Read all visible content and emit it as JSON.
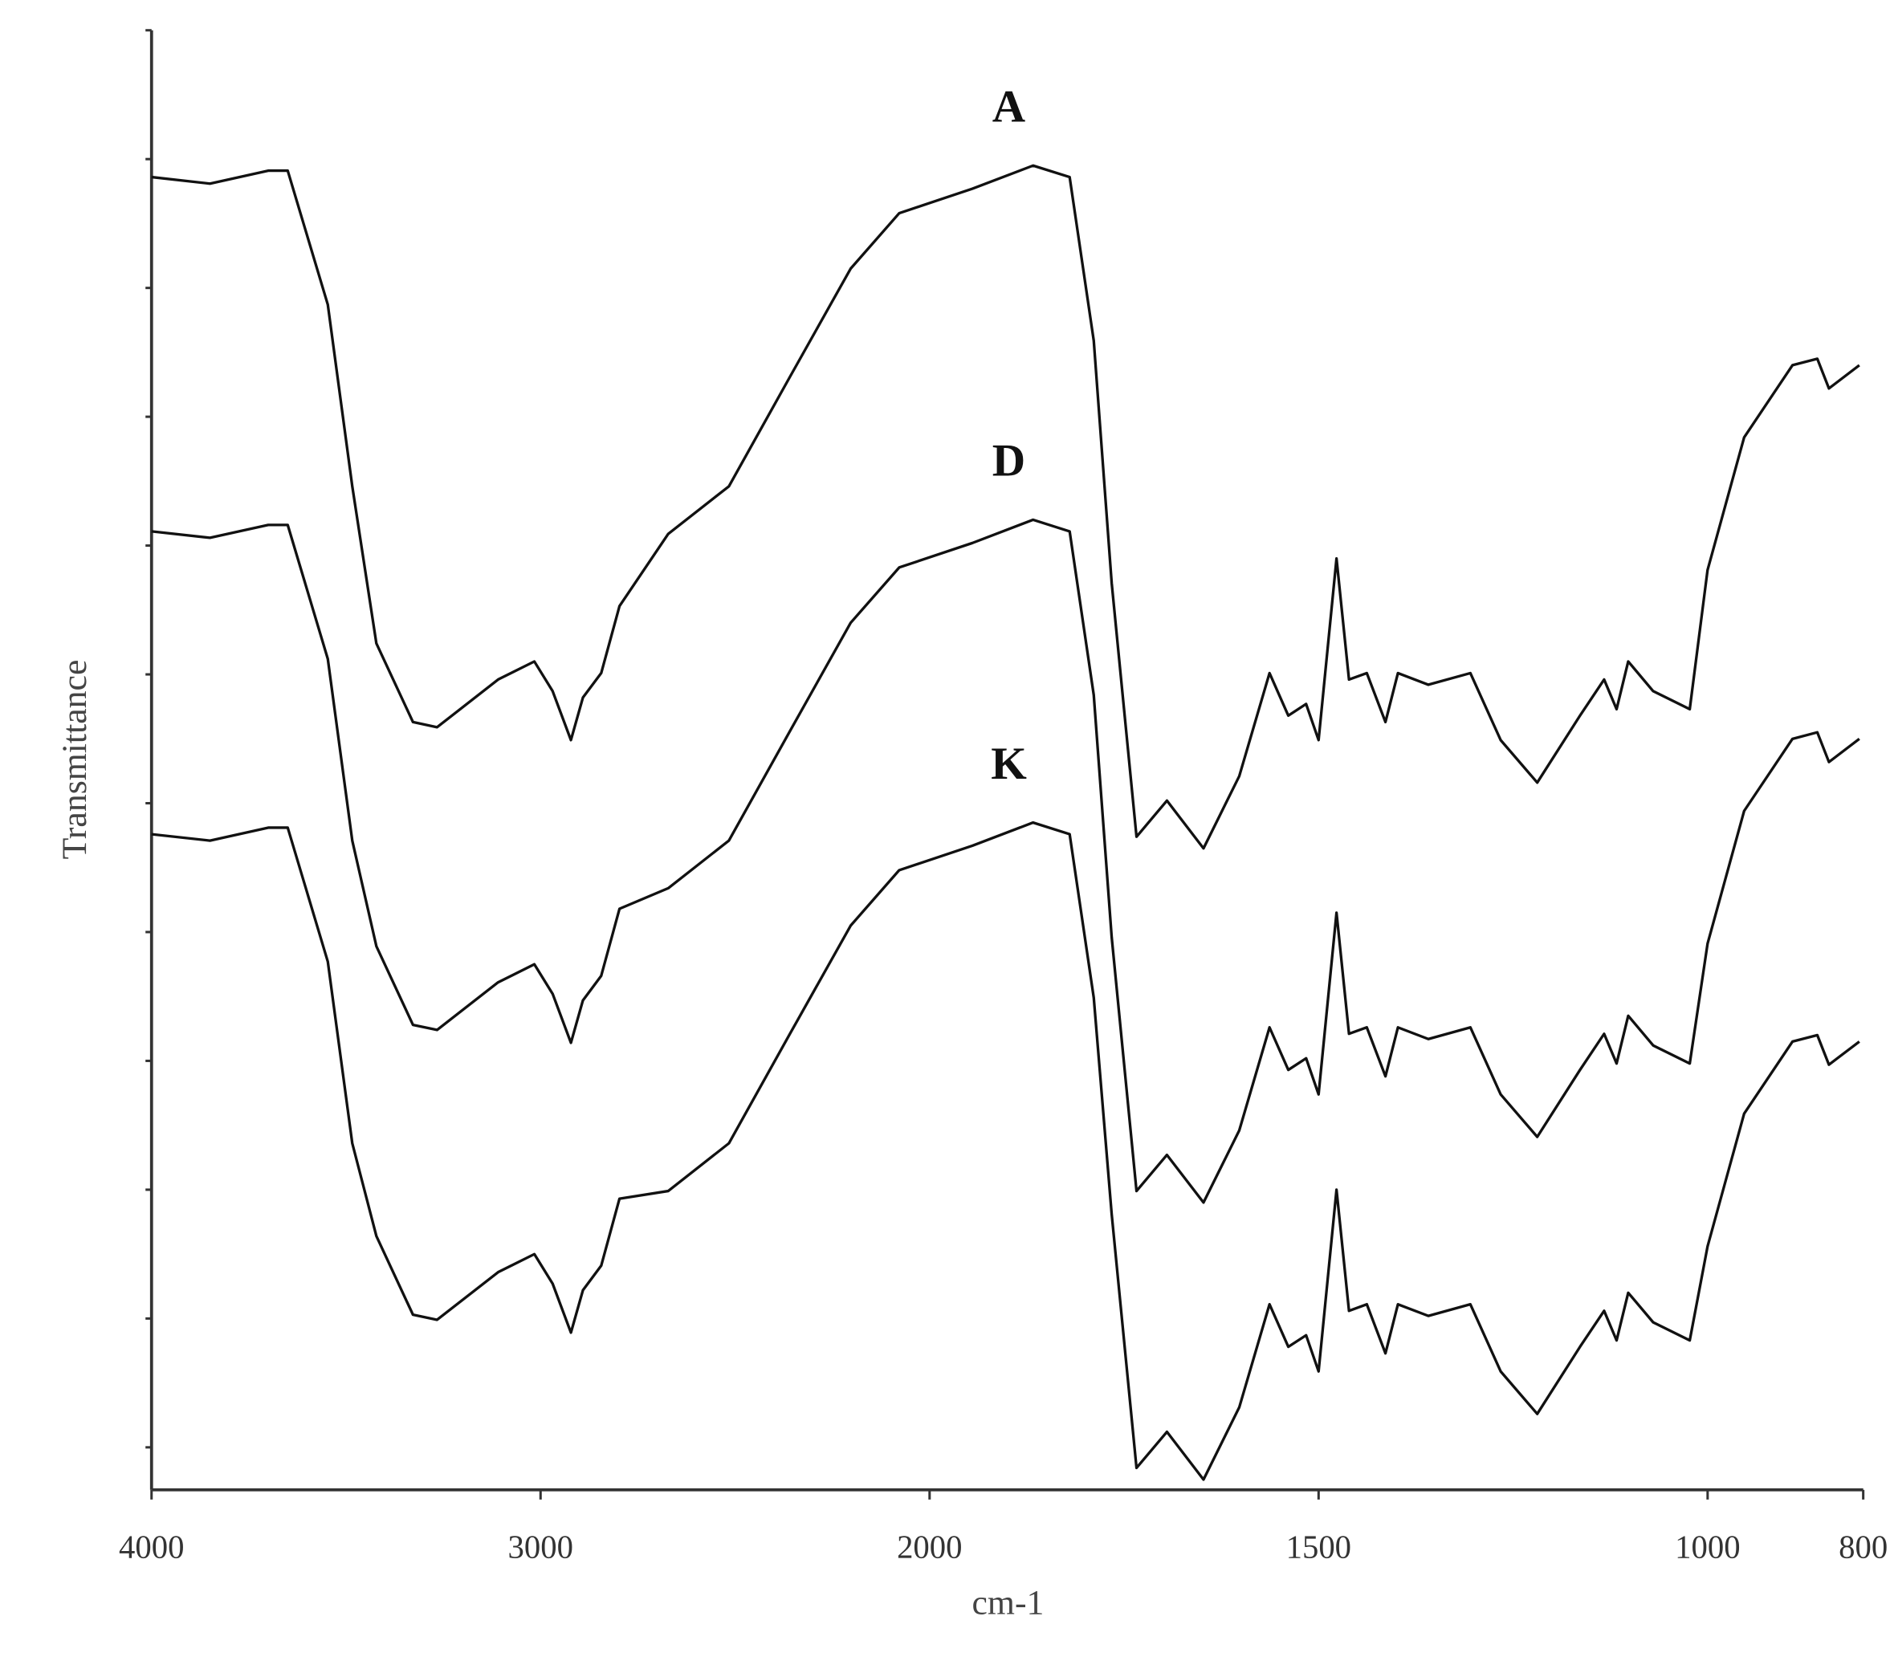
{
  "chart_data": {
    "type": "line",
    "xlabel": "cm-1",
    "ylabel": "Transmittance",
    "xlim": [
      4000,
      800
    ],
    "xticks": [
      4000,
      3000,
      2000,
      1500,
      1000,
      800
    ],
    "ylim": [
      -0.33,
      11
    ],
    "yticks": [
      0,
      1,
      2,
      3,
      4,
      5,
      6,
      7,
      8,
      9,
      10,
      11
    ],
    "x": [
      4000,
      3850,
      3700,
      3650,
      3547,
      3484,
      3422,
      3328,
      3266,
      3109,
      3016,
      2969,
      2922,
      2891,
      2844,
      2797,
      2672,
      2516,
      2359,
      2203,
      2078,
      1945,
      1867,
      1820,
      1789,
      1766,
      1734,
      1695,
      1648,
      1602,
      1563,
      1539,
      1516,
      1500,
      1477,
      1461,
      1438,
      1414,
      1398,
      1359,
      1305,
      1266,
      1219,
      1164,
      1133,
      1117,
      1102,
      1070,
      1023,
      1000,
      953,
      891,
      859,
      844,
      805
    ],
    "series": [
      {
        "name": "A",
        "color": "#111111",
        "values": [
          9.86,
          9.81,
          9.91,
          9.91,
          8.87,
          7.46,
          6.24,
          5.63,
          5.59,
          5.96,
          6.1,
          5.87,
          5.49,
          5.82,
          6.01,
          6.53,
          7.09,
          7.46,
          8.31,
          9.15,
          9.58,
          9.77,
          9.95,
          9.86,
          8.59,
          6.71,
          4.74,
          5.02,
          4.65,
          5.21,
          6.01,
          5.68,
          5.77,
          5.49,
          6.9,
          5.96,
          6.01,
          5.63,
          6.01,
          5.92,
          6.01,
          5.49,
          5.16,
          5.68,
          5.96,
          5.73,
          6.1,
          5.87,
          5.73,
          6.81,
          7.84,
          8.4,
          8.45,
          8.22,
          8.4
        ]
      },
      {
        "name": "D",
        "color": "#111111",
        "values": [
          7.11,
          7.06,
          7.16,
          7.16,
          6.12,
          4.71,
          3.89,
          3.28,
          3.24,
          3.61,
          3.75,
          3.52,
          3.14,
          3.47,
          3.66,
          4.18,
          4.34,
          4.71,
          5.56,
          6.4,
          6.83,
          7.02,
          7.2,
          7.11,
          5.84,
          3.96,
          1.99,
          2.27,
          1.9,
          2.46,
          3.26,
          2.93,
          3.02,
          2.74,
          4.15,
          3.21,
          3.26,
          2.88,
          3.26,
          3.17,
          3.26,
          2.74,
          2.41,
          2.93,
          3.21,
          2.98,
          3.35,
          3.12,
          2.98,
          3.91,
          4.94,
          5.5,
          5.55,
          5.32,
          5.5
        ]
      },
      {
        "name": "K",
        "color": "#111111",
        "values": [
          4.76,
          4.71,
          4.81,
          4.81,
          3.77,
          2.36,
          1.64,
          1.03,
          0.99,
          1.36,
          1.5,
          1.27,
          0.89,
          1.22,
          1.41,
          1.93,
          1.99,
          2.36,
          3.21,
          4.05,
          4.48,
          4.67,
          4.85,
          4.76,
          3.49,
          1.81,
          -0.16,
          0.12,
          -0.25,
          0.31,
          1.11,
          0.78,
          0.87,
          0.59,
          2.0,
          1.06,
          1.11,
          0.73,
          1.11,
          1.02,
          1.11,
          0.59,
          0.26,
          0.78,
          1.06,
          0.83,
          1.2,
          0.97,
          0.83,
          1.56,
          2.59,
          3.15,
          3.2,
          2.97,
          3.15
        ]
      }
    ]
  }
}
